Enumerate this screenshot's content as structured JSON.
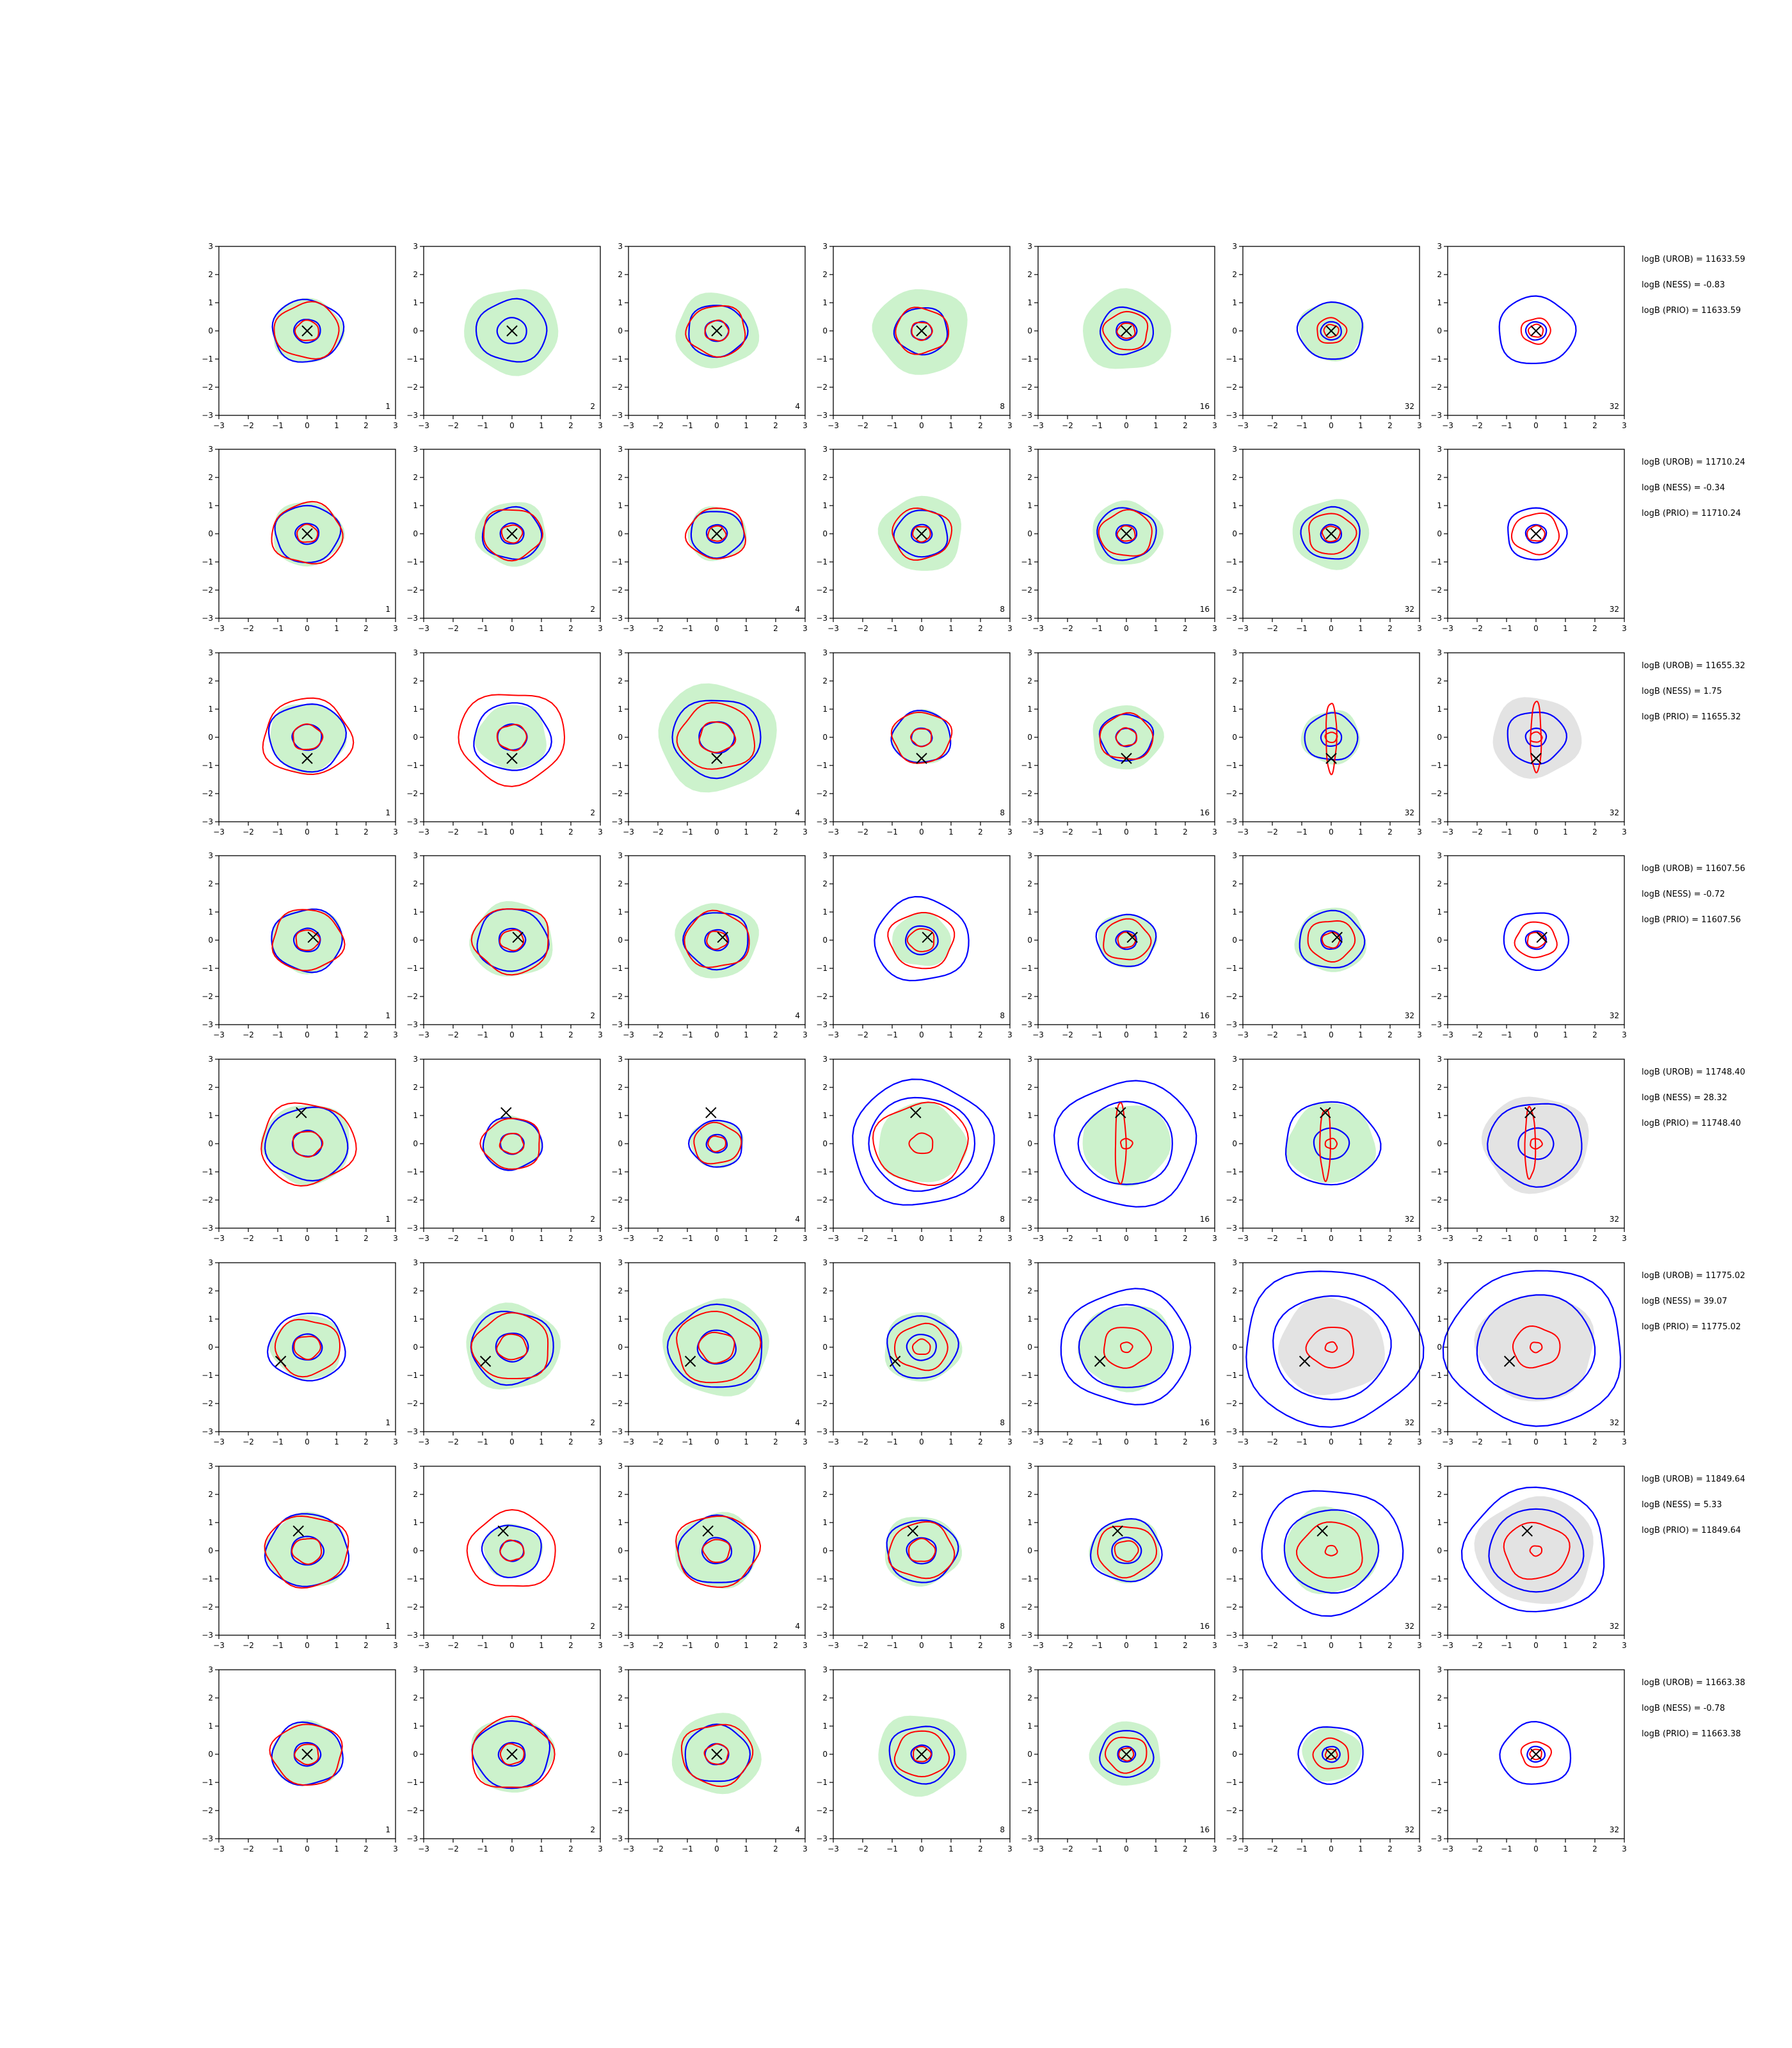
{
  "figure": {
    "axis_ticks": [
      "−3",
      "−2",
      "−1",
      "0",
      "1",
      "2",
      "3"
    ],
    "colors": {
      "fill_green": "#ccf2cc",
      "fill_gray": "#e3e3e3",
      "contour_blue": "#0000ff",
      "contour_red": "#ff0000",
      "marker": "#000000"
    }
  },
  "chart_data": {
    "type": "contour-grid",
    "xlim": [
      -3,
      3
    ],
    "ylim": [
      -3,
      3
    ],
    "grid": false,
    "column_labels": [
      "1",
      "2",
      "4",
      "8",
      "16",
      "32",
      "32"
    ],
    "rows": [
      {
        "marker": [
          0.0,
          0.0
        ],
        "stats": [
          "logB (UROB) = 11633.59",
          "logB (NESS) = -0.83",
          "logB (PRIO) = 11633.59"
        ],
        "panels": [
          {
            "fill": [
              1.2
            ],
            "blue": [
              1.2,
              0.45
            ],
            "red": [
              1.1,
              0.4
            ]
          },
          {
            "fill": [
              1.6
            ],
            "blue": [
              1.2,
              0.5
            ],
            "red": []
          },
          {
            "fill": [
              1.4
            ],
            "blue": [
              1.0,
              0.4
            ],
            "red": [
              1.0,
              0.4
            ]
          },
          {
            "fill": [
              1.6
            ],
            "blue": [
              0.9,
              0.35
            ],
            "red": [
              0.9,
              0.35
            ]
          },
          {
            "fill": [
              1.5
            ],
            "blue": [
              0.9,
              0.35
            ],
            "red": [
              0.75,
              0.3
            ]
          },
          {
            "fill": [
              1.1
            ],
            "blue": [
              1.1,
              0.35
            ],
            "red": [
              0.5,
              0.25
            ]
          },
          {
            "fill": [],
            "blue": [
              1.3,
              0.35
            ],
            "red": [
              0.5,
              0.25
            ]
          }
        ]
      },
      {
        "marker": [
          0.0,
          0.0
        ],
        "stats": [
          "logB (UROB) = 11710.24",
          "logB (NESS) = -0.34",
          "logB (PRIO) = 11710.24"
        ],
        "panels": [
          {
            "fill": [
              1.2
            ],
            "blue": [
              1.1,
              0.4
            ],
            "red": [
              1.2,
              0.35
            ]
          },
          {
            "fill": [
              1.2
            ],
            "blue": [
              1.0,
              0.4
            ],
            "red": [
              1.0,
              0.35
            ]
          },
          {
            "fill": [
              1.0
            ],
            "blue": [
              0.9,
              0.35
            ],
            "red": [
              1.0,
              0.3
            ]
          },
          {
            "fill": [
              1.4
            ],
            "blue": [
              0.9,
              0.35
            ],
            "red": [
              1.0,
              0.3
            ]
          },
          {
            "fill": [
              1.2
            ],
            "blue": [
              1.0,
              0.35
            ],
            "red": [
              0.9,
              0.3
            ]
          },
          {
            "fill": [
              1.3
            ],
            "blue": [
              1.0,
              0.35
            ],
            "red": [
              0.8,
              0.3
            ]
          },
          {
            "fill": [],
            "blue": [
              1.0,
              0.35
            ],
            "red": [
              0.8,
              0.3
            ]
          }
        ]
      },
      {
        "marker": [
          0.0,
          -0.75
        ],
        "stats": [
          "logB (UROB) = 11655.32",
          "logB (NESS) = 1.75",
          "logB (PRIO) = 11655.32"
        ],
        "panels": [
          {
            "fill": [
              1.3
            ],
            "blue": [
              1.3,
              0.5
            ],
            "red": [
              1.5,
              0.5
            ]
          },
          {
            "fill": [
              1.2
            ],
            "blue": [
              1.3,
              0.5
            ],
            "red": [
              1.8,
              0.5
            ]
          },
          {
            "fill": [
              2.0
            ],
            "blue": [
              1.5,
              0.6
            ],
            "red": [
              1.3,
              0.6
            ]
          },
          {
            "fill": [
              1.0
            ],
            "blue": [
              1.0,
              0.35
            ],
            "red": [
              1.0,
              0.35
            ]
          },
          {
            "fill": [
              1.2
            ],
            "blue": [
              0.9,
              0.35
            ],
            "red": [
              0.9,
              0.35
            ]
          },
          {
            "fill": [
              1.0
            ],
            "blue": [
              0.9,
              0.35
            ],
            "red": [
              1.4,
              0.2
            ]
          },
          {
            "fill": [
              1.5
            ],
            "blue": [
              1.0,
              0.35
            ],
            "red": [
              1.4,
              0.2
            ]
          }
        ]
      },
      {
        "marker": [
          0.2,
          0.1
        ],
        "stats": [
          "logB (UROB) = 11607.56",
          "logB (NESS) = -0.72",
          "logB (PRIO) = 11607.56"
        ],
        "panels": [
          {
            "fill": [
              1.2
            ],
            "blue": [
              1.2,
              0.45
            ],
            "red": [
              1.2,
              0.4
            ]
          },
          {
            "fill": [
              1.4
            ],
            "blue": [
              1.2,
              0.45
            ],
            "red": [
              1.3,
              0.4
            ]
          },
          {
            "fill": [
              1.4
            ],
            "blue": [
              1.1,
              0.4
            ],
            "red": [
              1.1,
              0.35
            ]
          },
          {
            "fill": [
              1.0
            ],
            "blue": [
              1.6,
              0.55
            ],
            "red": [
              1.1,
              0.45
            ]
          },
          {
            "fill": [
              1.0
            ],
            "blue": [
              1.0,
              0.35
            ],
            "red": [
              0.8,
              0.3
            ]
          },
          {
            "fill": [
              1.2
            ],
            "blue": [
              1.1,
              0.35
            ],
            "red": [
              0.8,
              0.3
            ]
          },
          {
            "fill": [],
            "blue": [
              1.1,
              0.35
            ],
            "red": [
              0.7,
              0.3
            ]
          }
        ]
      },
      {
        "marker": [
          -0.2,
          1.1
        ],
        "stats": [
          "logB (UROB) = 11748.40",
          "logB (NESS) = 28.32",
          "logB (PRIO) = 11748.40"
        ],
        "panels": [
          {
            "fill": [
              1.5
            ],
            "blue": [
              1.4,
              0.5
            ],
            "red": [
              1.6,
              0.5
            ]
          },
          {
            "fill": [
              1.0
            ],
            "blue": [
              1.0,
              0.4
            ],
            "red": [
              1.0,
              0.4
            ]
          },
          {
            "fill": [
              0.9
            ],
            "blue": [
              0.9,
              0.35
            ],
            "red": [
              0.8,
              0.3
            ]
          },
          {
            "fill": [
              1.5
            ],
            "blue": [
              2.4,
              1.8
            ],
            "red": [
              1.6,
              0.4
            ]
          },
          {
            "fill": [
              1.5
            ],
            "blue": [
              2.4,
              1.6
            ],
            "red": [
              1.6,
              0.2
            ]
          },
          {
            "fill": [
              1.5
            ],
            "blue": [
              1.6,
              0.6
            ],
            "red": [
              1.4,
              0.2
            ]
          },
          {
            "fill": [
              1.8
            ],
            "blue": [
              1.6,
              0.6
            ],
            "red": [
              1.4,
              0.2
            ]
          }
        ]
      },
      {
        "marker": [
          -0.9,
          -0.5
        ],
        "stats": [
          "logB (UROB) = 11775.02",
          "logB (NESS) = 39.07",
          "logB (PRIO) = 11775.02"
        ],
        "panels": [
          {
            "fill": [
              1.2
            ],
            "blue": [
              1.3,
              0.5
            ],
            "red": [
              1.1,
              0.45
            ]
          },
          {
            "fill": [
              1.6
            ],
            "blue": [
              1.4,
              0.55
            ],
            "red": [
              1.3,
              0.5
            ]
          },
          {
            "fill": [
              1.8
            ],
            "blue": [
              1.6,
              0.65
            ],
            "red": [
              1.4,
              0.6
            ]
          },
          {
            "fill": [
              1.3
            ],
            "blue": [
              1.2,
              0.5
            ],
            "red": [
              0.9,
              0.3
            ]
          },
          {
            "fill": [
              1.6
            ],
            "blue": [
              2.2,
              1.6
            ],
            "red": [
              0.8,
              0.2
            ]
          },
          {
            "fill": [
              1.8
            ],
            "blue": [
              3.0,
              2.0
            ],
            "red": [
              0.8,
              0.2
            ]
          },
          {
            "fill": [
              2.0
            ],
            "blue": [
              3.0,
              2.0
            ],
            "red": [
              0.8,
              0.2
            ]
          }
        ]
      },
      {
        "marker": [
          -0.3,
          0.7
        ],
        "stats": [
          "logB (UROB) = 11849.64",
          "logB (NESS) = 5.33",
          "logB (PRIO) = 11849.64"
        ],
        "panels": [
          {
            "fill": [
              1.4
            ],
            "blue": [
              1.4,
              0.55
            ],
            "red": [
              1.4,
              0.5
            ]
          },
          {
            "fill": [
              1.0
            ],
            "blue": [
              1.0,
              0.4
            ],
            "red": [
              1.5,
              0.4
            ]
          },
          {
            "fill": [
              1.4
            ],
            "blue": [
              1.3,
              0.5
            ],
            "red": [
              1.4,
              0.45
            ]
          },
          {
            "fill": [
              1.3
            ],
            "blue": [
              1.2,
              0.5
            ],
            "red": [
              1.1,
              0.45
            ]
          },
          {
            "fill": [
              1.2
            ],
            "blue": [
              1.2,
              0.5
            ],
            "red": [
              1.0,
              0.4
            ]
          },
          {
            "fill": [
              1.6
            ],
            "blue": [
              2.4,
              1.6
            ],
            "red": [
              1.1,
              0.2
            ]
          },
          {
            "fill": [
              2.0
            ],
            "blue": [
              2.4,
              1.6
            ],
            "red": [
              1.1,
              0.2
            ]
          }
        ]
      },
      {
        "marker": [
          0.0,
          0.0
        ],
        "stats": [
          "logB (UROB) = 11663.38",
          "logB (NESS) = -0.78",
          "logB (PRIO) = 11663.38"
        ],
        "panels": [
          {
            "fill": [
              1.2
            ],
            "blue": [
              1.2,
              0.45
            ],
            "red": [
              1.2,
              0.4
            ]
          },
          {
            "fill": [
              1.4
            ],
            "blue": [
              1.3,
              0.45
            ],
            "red": [
              1.4,
              0.4
            ]
          },
          {
            "fill": [
              1.5
            ],
            "blue": [
              1.1,
              0.4
            ],
            "red": [
              1.2,
              0.4
            ]
          },
          {
            "fill": [
              1.5
            ],
            "blue": [
              1.1,
              0.35
            ],
            "red": [
              0.9,
              0.3
            ]
          },
          {
            "fill": [
              1.2
            ],
            "blue": [
              0.9,
              0.3
            ],
            "red": [
              0.7,
              0.25
            ]
          },
          {
            "fill": [
              1.0
            ],
            "blue": [
              1.1,
              0.3
            ],
            "red": [
              0.6,
              0.2
            ]
          },
          {
            "fill": [],
            "blue": [
              1.2,
              0.3
            ],
            "red": [
              0.5,
              0.2
            ]
          }
        ]
      }
    ]
  }
}
